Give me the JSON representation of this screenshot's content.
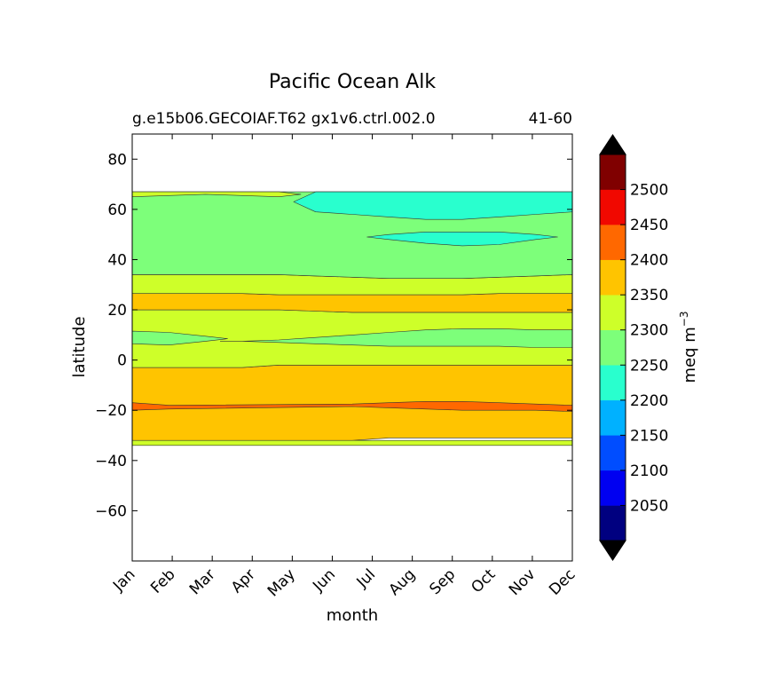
{
  "chart_data": {
    "type": "contourf",
    "title": "Pacific Ocean Alk",
    "subtitle_left": "g.e15b06.GECOIAF.T62 gx1v6.ctrl.002.0",
    "subtitle_right": "41-60",
    "xlabel": "month",
    "ylabel": "latitude",
    "x_ticks": [
      "Jan",
      "Feb",
      "Mar",
      "Apr",
      "May",
      "Jun",
      "Jul",
      "Aug",
      "Sep",
      "Oct",
      "Nov",
      "Dec"
    ],
    "y_ticks": [
      80,
      60,
      40,
      20,
      0,
      -20,
      -40,
      -60
    ],
    "ylim": [
      -80,
      90
    ],
    "data_lat_range": [
      -34,
      67
    ],
    "colorbar": {
      "label": "meq m",
      "label_exponent": "−3",
      "levels": [
        2000,
        2050,
        2100,
        2150,
        2200,
        2250,
        2300,
        2350,
        2400,
        2450,
        2500,
        2550
      ],
      "tick_labels": [
        "2050",
        "2100",
        "2150",
        "2200",
        "2250",
        "2300",
        "2350",
        "2400",
        "2450",
        "2500"
      ],
      "tick_values": [
        2050,
        2100,
        2150,
        2200,
        2250,
        2300,
        2350,
        2400,
        2450,
        2500
      ],
      "colors": [
        "#000080",
        "#0000f1",
        "#004dff",
        "#00b1ff",
        "#29ffce",
        "#7dff7a",
        "#ceff29",
        "#ffc400",
        "#ff6800",
        "#f10800",
        "#800000"
      ],
      "extend_low_color": "#000000",
      "extend_high_color": "#000000"
    },
    "bands": [
      {
        "name": "2300-2350",
        "color": "#ceff29",
        "top": [
          -32,
          -32,
          -32,
          -32,
          -32,
          -32,
          -32,
          -32,
          -32,
          -32,
          -32,
          -32,
          -32
        ],
        "bottom": [
          -34,
          -34,
          -34,
          -34,
          -34,
          -34,
          -34,
          -34,
          -34,
          -34,
          -34,
          -34,
          -34
        ]
      },
      {
        "name": "2350-2400",
        "color": "#ffc400",
        "top": [
          -3,
          -3,
          -3,
          -3,
          -2,
          -2,
          -2,
          -2,
          -2,
          -2,
          -2,
          -2,
          -2
        ],
        "bottom": [
          -32,
          -32,
          -32,
          -32,
          -32,
          -32,
          -32,
          -31,
          -31,
          -31,
          -31,
          -31,
          -31
        ]
      },
      {
        "name": "2300-2350",
        "color": "#ceff29",
        "top": [
          20,
          20,
          20,
          20,
          20,
          19.5,
          19,
          19,
          19,
          19,
          19,
          19,
          19
        ],
        "bottom": [
          -3,
          -3,
          -3,
          -3,
          -2,
          -2,
          -2,
          -2,
          -2,
          -2,
          -2,
          -2,
          -2
        ]
      },
      {
        "name": "2350-2400",
        "color": "#ffc400",
        "top": [
          26.5,
          26.5,
          26.5,
          26.5,
          26,
          26,
          26,
          26,
          26,
          26,
          26.5,
          26.5,
          26.5
        ],
        "bottom": [
          20,
          20,
          20,
          20,
          20,
          19.5,
          19,
          19,
          19,
          19,
          19,
          19,
          19
        ]
      },
      {
        "name": "2300-2350",
        "color": "#ceff29",
        "top": [
          34,
          34,
          34,
          34,
          34,
          33.5,
          33,
          32.5,
          32.5,
          32.5,
          33,
          33.5,
          34
        ],
        "bottom": [
          26.5,
          26.5,
          26.5,
          26.5,
          26,
          26,
          26,
          26,
          26,
          26,
          26.5,
          26.5,
          26.5
        ]
      },
      {
        "name": "2250-2300",
        "color": "#7dff7a",
        "top": [
          67,
          67,
          67,
          67,
          67,
          67,
          67,
          67,
          67,
          67,
          67,
          67,
          67
        ],
        "bottom": [
          34,
          34,
          34,
          34,
          34,
          33.5,
          33,
          32.5,
          32.5,
          32.5,
          33,
          33.5,
          34
        ]
      }
    ],
    "patches": [
      {
        "color": "#7dff7a",
        "lats_top": [
          null,
          null,
          null,
          7.5,
          8,
          9,
          10,
          11,
          12,
          12.5,
          12.5,
          12,
          12
        ],
        "lats_bottom": [
          null,
          null,
          null,
          7.5,
          7,
          6.5,
          6,
          5.5,
          5.5,
          5.5,
          5.5,
          5,
          5
        ]
      },
      {
        "color": "#7dff7a",
        "lats_top": [
          11.5,
          11,
          9.5,
          null,
          null,
          null,
          null,
          null,
          null,
          null,
          null,
          null,
          null
        ],
        "lats_bottom": [
          6.5,
          6,
          7.5,
          null,
          null,
          null,
          null,
          null,
          null,
          null,
          null,
          null,
          null
        ]
      },
      {
        "color": "#29ffce",
        "lats_top": [
          null,
          null,
          null,
          null,
          null,
          67,
          67,
          67,
          67,
          67,
          67,
          67,
          67
        ],
        "lats_bottom": [
          null,
          null,
          null,
          null,
          60,
          59,
          58,
          57,
          56,
          56,
          57,
          58,
          59
        ]
      },
      {
        "color": "#29ffce",
        "lats_top": [
          null,
          null,
          null,
          null,
          null,
          null,
          null,
          50,
          51,
          51,
          51,
          50,
          null
        ],
        "lats_bottom": [
          null,
          null,
          null,
          null,
          null,
          null,
          null,
          48,
          46.5,
          45.5,
          46,
          48,
          null
        ]
      },
      {
        "color": "#ceff29",
        "lats_top": [
          67,
          67,
          67,
          67,
          67,
          null,
          null,
          null,
          null,
          null,
          null,
          null,
          null
        ],
        "lats_bottom": [
          65,
          65.5,
          66,
          65.5,
          65,
          null,
          null,
          null,
          null,
          null,
          null,
          null,
          null
        ]
      },
      {
        "color": "#ff6800",
        "lats_top": [
          -17,
          -18,
          null,
          null,
          null,
          null,
          -17.5,
          -17,
          -16.5,
          -16.5,
          -17,
          -17.5,
          -18
        ],
        "lats_bottom": [
          -20,
          -19.5,
          null,
          null,
          null,
          null,
          -18.5,
          -19,
          -19.5,
          -20,
          -20,
          -20,
          -20.5
        ]
      }
    ]
  }
}
